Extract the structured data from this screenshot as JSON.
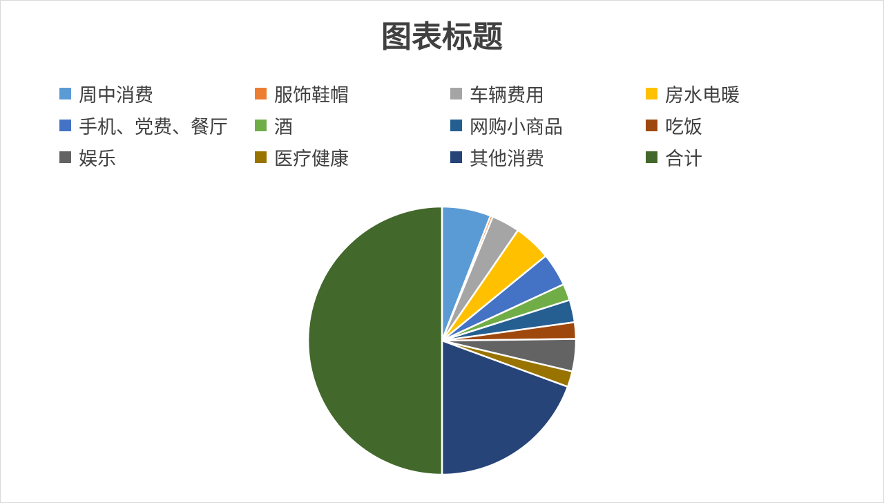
{
  "chart_data": {
    "type": "pie",
    "title": "图表标题",
    "legend_position": "top",
    "slices": [
      {
        "label": "周中消费",
        "value": 5.9,
        "color": "#5B9BD5"
      },
      {
        "label": "服饰鞋帽",
        "value": 0.3,
        "color": "#ED7D31"
      },
      {
        "label": "车辆费用",
        "value": 3.4,
        "color": "#A5A5A5"
      },
      {
        "label": "房水电暖",
        "value": 4.5,
        "color": "#FFC000"
      },
      {
        "label": "手机、党费、餐厅",
        "value": 4.0,
        "color": "#4472C4"
      },
      {
        "label": "酒",
        "value": 2.0,
        "color": "#70AD47"
      },
      {
        "label": "网购小商品",
        "value": 2.7,
        "color": "#255E91"
      },
      {
        "label": "吃饭",
        "value": 2.0,
        "color": "#9E480E"
      },
      {
        "label": "娱乐",
        "value": 3.9,
        "color": "#636363"
      },
      {
        "label": "医疗健康",
        "value": 1.9,
        "color": "#997300"
      },
      {
        "label": "其他消费",
        "value": 19.4,
        "color": "#264478"
      },
      {
        "label": "合计",
        "value": 50.0,
        "color": "#43682B"
      }
    ]
  }
}
